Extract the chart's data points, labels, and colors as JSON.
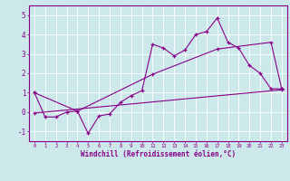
{
  "xlabel": "Windchill (Refroidissement éolien,°C)",
  "bg_color": "#cce8ea",
  "line_color": "#880088",
  "ylim": [
    -1.5,
    5.5
  ],
  "xlim": [
    -0.5,
    23.5
  ],
  "line1_x": [
    0,
    1,
    2,
    3,
    4,
    5,
    6,
    7,
    8,
    9,
    10,
    11,
    12,
    13,
    14,
    15,
    16,
    17,
    18,
    19,
    20,
    21,
    22,
    23
  ],
  "line1_y": [
    1.0,
    -0.25,
    -0.25,
    0.0,
    0.05,
    -1.1,
    -0.2,
    -0.1,
    0.5,
    0.85,
    1.1,
    3.5,
    3.3,
    2.9,
    3.2,
    4.0,
    4.15,
    4.85,
    3.6,
    3.3,
    2.4,
    2.0,
    1.2,
    1.2
  ],
  "line2_x": [
    0,
    4,
    11,
    17,
    22,
    23
  ],
  "line2_y": [
    1.0,
    0.05,
    1.95,
    3.25,
    3.6,
    1.2
  ],
  "line3_x": [
    0,
    23
  ],
  "line3_y": [
    -0.05,
    1.15
  ],
  "yticks": [
    -1,
    0,
    1,
    2,
    3,
    4,
    5
  ],
  "xticks": [
    0,
    1,
    2,
    3,
    4,
    5,
    6,
    7,
    8,
    9,
    10,
    11,
    12,
    13,
    14,
    15,
    16,
    17,
    18,
    19,
    20,
    21,
    22,
    23
  ],
  "grid_color": "#aacccc",
  "spine_color": "#880088"
}
